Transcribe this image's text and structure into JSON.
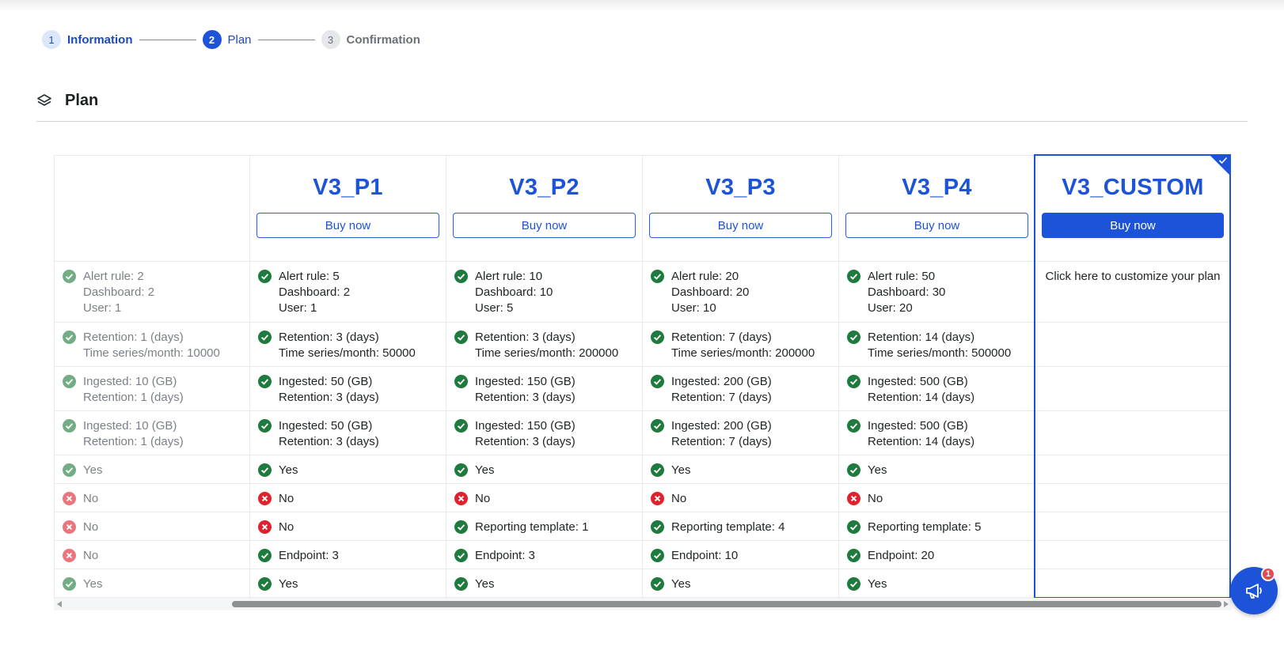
{
  "stepper": {
    "steps": [
      {
        "number": "1",
        "label": "Information",
        "state": "done"
      },
      {
        "number": "2",
        "label": "Plan",
        "state": "active"
      },
      {
        "number": "3",
        "label": "Confirmation",
        "state": "pending"
      }
    ]
  },
  "section": {
    "title": "Plan",
    "icon": "layers-icon"
  },
  "plans": [
    {
      "name": "",
      "button": "",
      "rows": [
        {
          "icon": "check",
          "text": "Alert rule: 2\nDashboard: 2\nUser: 1"
        },
        {
          "icon": "check",
          "text": "Retention: 1 (days)\nTime series/month: 10000"
        },
        {
          "icon": "check",
          "text": "Ingested: 10 (GB)\nRetention: 1 (days)"
        },
        {
          "icon": "check",
          "text": "Ingested: 10 (GB)\nRetention: 1 (days)"
        },
        {
          "icon": "check",
          "text": "Yes"
        },
        {
          "icon": "cross",
          "text": "No"
        },
        {
          "icon": "cross",
          "text": "No"
        },
        {
          "icon": "cross",
          "text": "No"
        },
        {
          "icon": "check",
          "text": "Yes"
        }
      ]
    },
    {
      "name": "V3_P1",
      "button": "Buy now",
      "rows": [
        {
          "icon": "check",
          "text": "Alert rule: 5\nDashboard: 2\nUser: 1"
        },
        {
          "icon": "check",
          "text": "Retention: 3 (days)\nTime series/month: 50000"
        },
        {
          "icon": "check",
          "text": "Ingested: 50 (GB)\nRetention: 3 (days)"
        },
        {
          "icon": "check",
          "text": "Ingested: 50 (GB)\nRetention: 3 (days)"
        },
        {
          "icon": "check",
          "text": "Yes"
        },
        {
          "icon": "cross",
          "text": "No"
        },
        {
          "icon": "cross",
          "text": "No"
        },
        {
          "icon": "check",
          "text": "Endpoint: 3"
        },
        {
          "icon": "check",
          "text": "Yes"
        }
      ]
    },
    {
      "name": "V3_P2",
      "button": "Buy now",
      "rows": [
        {
          "icon": "check",
          "text": "Alert rule: 10\nDashboard: 10\nUser: 5"
        },
        {
          "icon": "check",
          "text": "Retention: 3 (days)\nTime series/month: 200000"
        },
        {
          "icon": "check",
          "text": "Ingested: 150 (GB)\nRetention: 3 (days)"
        },
        {
          "icon": "check",
          "text": "Ingested: 150 (GB)\nRetention: 3 (days)"
        },
        {
          "icon": "check",
          "text": "Yes"
        },
        {
          "icon": "cross",
          "text": "No"
        },
        {
          "icon": "check",
          "text": "Reporting template: 1"
        },
        {
          "icon": "check",
          "text": "Endpoint: 3"
        },
        {
          "icon": "check",
          "text": "Yes"
        }
      ]
    },
    {
      "name": "V3_P3",
      "button": "Buy now",
      "rows": [
        {
          "icon": "check",
          "text": "Alert rule: 20\nDashboard: 20\nUser: 10"
        },
        {
          "icon": "check",
          "text": "Retention: 7 (days)\nTime series/month: 200000"
        },
        {
          "icon": "check",
          "text": "Ingested: 200 (GB)\nRetention: 7 (days)"
        },
        {
          "icon": "check",
          "text": "Ingested: 200 (GB)\nRetention: 7 (days)"
        },
        {
          "icon": "check",
          "text": "Yes"
        },
        {
          "icon": "cross",
          "text": "No"
        },
        {
          "icon": "check",
          "text": "Reporting template: 4"
        },
        {
          "icon": "check",
          "text": "Endpoint: 10"
        },
        {
          "icon": "check",
          "text": "Yes"
        }
      ]
    },
    {
      "name": "V3_P4",
      "button": "Buy now",
      "rows": [
        {
          "icon": "check",
          "text": "Alert rule: 50\nDashboard: 30\nUser: 20"
        },
        {
          "icon": "check",
          "text": "Retention: 14 (days)\nTime series/month: 500000"
        },
        {
          "icon": "check",
          "text": "Ingested: 500 (GB)\nRetention: 14 (days)"
        },
        {
          "icon": "check",
          "text": "Ingested: 500 (GB)\nRetention: 14 (days)"
        },
        {
          "icon": "check",
          "text": "Yes"
        },
        {
          "icon": "cross",
          "text": "No"
        },
        {
          "icon": "check",
          "text": "Reporting template: 5"
        },
        {
          "icon": "check",
          "text": "Endpoint: 20"
        },
        {
          "icon": "check",
          "text": "Yes"
        }
      ]
    },
    {
      "name": "V3_CUSTOM",
      "button": "Buy now",
      "selected": true,
      "custom_text": "Click here to customize your plan"
    }
  ],
  "colors": {
    "primary": "#1c53d8",
    "check": "#1e7b3d",
    "cross": "#e0222e"
  },
  "notifications": {
    "count": "1",
    "icon": "megaphone-icon"
  }
}
